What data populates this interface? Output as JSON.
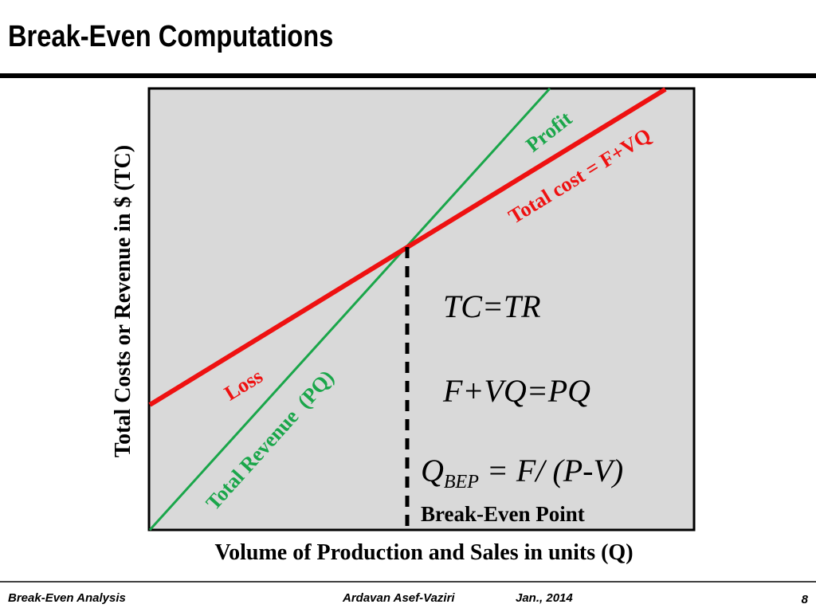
{
  "header": {
    "title": "Break-Even Computations"
  },
  "diagram": {
    "y_axis_label": "Total Costs or Revenue in $ (TC)",
    "x_axis_label": "Volume of Production and Sales in units (Q)",
    "profit_label": "Profit",
    "total_cost_label": "Total cost = F+VQ",
    "loss_label": "Loss",
    "total_revenue_label": "Total Revenue  (PQ)",
    "equation_1": "TC=TR",
    "equation_2": "F+VQ=PQ",
    "equation_3": {
      "symbol": "Q",
      "subscript": "BEP",
      "rest": " = F/ (P-V)"
    },
    "bep_label": "Break-Even Point"
  },
  "footer": {
    "left": "Break-Even Analysis",
    "author": "Ardavan Asef-Vaziri",
    "date": "Jan., 2014",
    "page": "8"
  }
}
